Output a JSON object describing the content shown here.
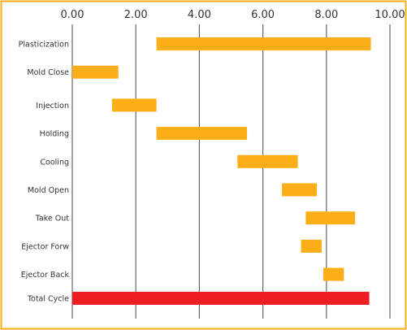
{
  "chart_data": {
    "type": "bar",
    "subtype": "floating-bar-timeline",
    "title": "",
    "xlabel": "",
    "ylabel": "",
    "xlim": [
      0,
      10
    ],
    "x_ticks": [
      "0.00",
      "2.00",
      "4.00",
      "6.00",
      "8.00",
      "10.00"
    ],
    "x_tick_values": [
      0,
      2,
      4,
      6,
      8,
      10
    ],
    "grid": "vertical-major",
    "legend": "none",
    "categories": [
      "Plasticization",
      "Mold Close",
      "Injection",
      "Holding",
      "Cooling",
      "Mold Open",
      "Take Out",
      "Ejector Forw",
      "Ejector Back",
      "Total Cycle"
    ],
    "series": [
      {
        "start": [
          2.65,
          0.0,
          1.25,
          2.65,
          5.2,
          6.6,
          7.35,
          7.2,
          7.9,
          0.0
        ],
        "end": [
          9.4,
          1.45,
          2.65,
          5.5,
          7.1,
          7.7,
          8.9,
          7.85,
          8.55,
          9.35
        ]
      }
    ],
    "colors": {
      "bar": "#FBAE17",
      "total_bar": "#EE1C24",
      "frame": "#FBAE17",
      "gridline": "#666666",
      "text": "#333333"
    }
  }
}
